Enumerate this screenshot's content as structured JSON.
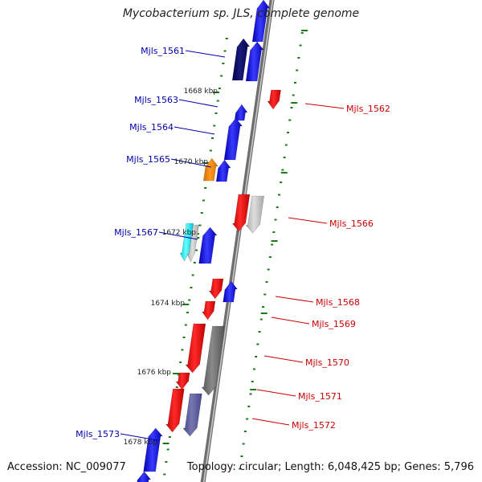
{
  "title": "Mycobacterium sp. JLS, complete genome",
  "footer": {
    "accession": "Accession: NC_009077",
    "summary": "Topology: circular; Length: 6,048,425 bp; Genes: 5,796"
  },
  "colors": {
    "left_label": "#0000aa",
    "right_label": "#cc0000",
    "tick": "#1a7a1a",
    "backbone": "#7f7f7f"
  },
  "kbp_labels": [
    "1668 kbp",
    "1670 kbp",
    "1672 kbp",
    "1674 kbp",
    "1676 kbp",
    "1678 kbp"
  ],
  "genes_left": [
    "Mjls_1561",
    "Mjls_1563",
    "Mjls_1564",
    "Mjls_1565",
    "Mjls_1567",
    "Mjls_1573"
  ],
  "genes_right": [
    "Mjls_1562",
    "Mjls_1566",
    "Mjls_1568",
    "Mjls_1569",
    "Mjls_1570",
    "Mjls_1571",
    "Mjls_1572"
  ]
}
